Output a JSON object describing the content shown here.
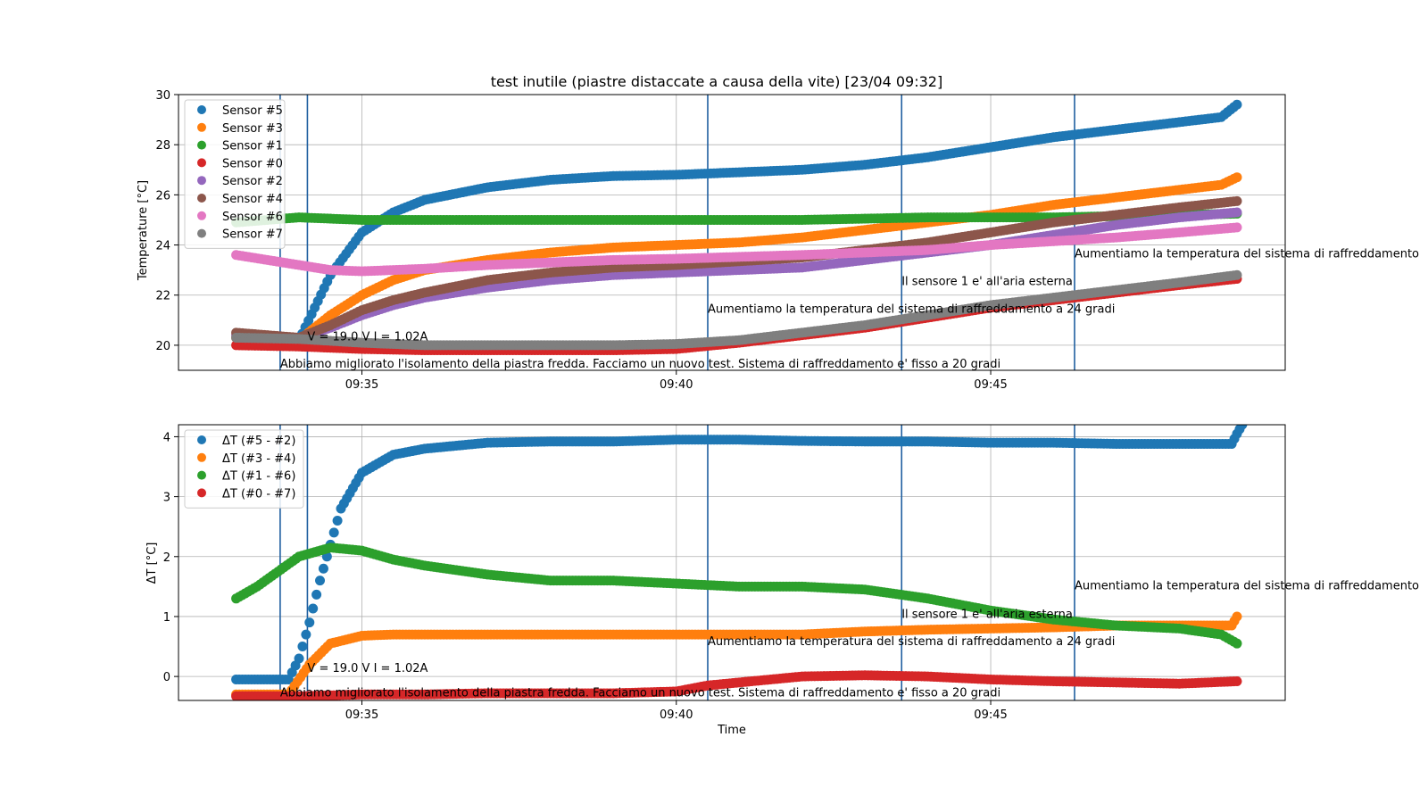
{
  "chart_data": [
    {
      "type": "scatter",
      "title": "test inutile (piastre distaccate a causa della vite) [23/04 09:32]",
      "xlabel": "",
      "ylabel": "Temperature [°C]",
      "xlim": [
        "09:32:05",
        "09:49:41"
      ],
      "ylim": [
        19,
        30
      ],
      "x_ticks": [
        "09:35",
        "09:40",
        "09:45"
      ],
      "y_ticks": [
        20,
        22,
        24,
        26,
        28,
        30
      ],
      "grid": true,
      "legend_position": "upper-left",
      "series": [
        {
          "name": "Sensor #5",
          "color": "#1f77b4",
          "x": [
            "09:33:00",
            "09:34:00",
            "09:34:30",
            "09:35:00",
            "09:35:30",
            "09:36:00",
            "09:37:00",
            "09:38:00",
            "09:39:00",
            "09:40:00",
            "09:41:00",
            "09:42:00",
            "09:43:00",
            "09:44:00",
            "09:45:00",
            "09:46:00",
            "09:47:00",
            "09:48:00",
            "09:48:40",
            "09:48:55"
          ],
          "values": [
            20.3,
            20.2,
            22.8,
            24.5,
            25.3,
            25.8,
            26.3,
            26.6,
            26.75,
            26.8,
            26.9,
            27.0,
            27.2,
            27.5,
            27.9,
            28.3,
            28.6,
            28.9,
            29.1,
            29.6
          ]
        },
        {
          "name": "Sensor #3",
          "color": "#ff7f0e",
          "x": [
            "09:33:00",
            "09:34:00",
            "09:34:30",
            "09:35:00",
            "09:35:30",
            "09:36:00",
            "09:37:00",
            "09:38:00",
            "09:39:00",
            "09:40:00",
            "09:41:00",
            "09:42:00",
            "09:43:00",
            "09:44:00",
            "09:45:00",
            "09:46:00",
            "09:47:00",
            "09:48:00",
            "09:48:40",
            "09:48:55"
          ],
          "values": [
            20.3,
            20.2,
            21.2,
            22.0,
            22.6,
            23.0,
            23.4,
            23.7,
            23.9,
            24.0,
            24.1,
            24.3,
            24.6,
            24.9,
            25.2,
            25.6,
            25.9,
            26.2,
            26.4,
            26.7
          ]
        },
        {
          "name": "Sensor #1",
          "color": "#2ca02c",
          "x": [
            "09:33:00",
            "09:34:00",
            "09:35:00",
            "09:36:00",
            "09:38:00",
            "09:40:00",
            "09:42:00",
            "09:44:00",
            "09:46:00",
            "09:48:00",
            "09:48:55"
          ],
          "values": [
            24.9,
            25.1,
            25.0,
            25.0,
            25.0,
            25.0,
            25.0,
            25.1,
            25.1,
            25.2,
            25.25
          ]
        },
        {
          "name": "Sensor #0",
          "color": "#d62728",
          "x": [
            "09:33:00",
            "09:34:00",
            "09:35:00",
            "09:36:00",
            "09:37:00",
            "09:38:00",
            "09:39:00",
            "09:40:00",
            "09:41:00",
            "09:42:00",
            "09:43:00",
            "09:44:00",
            "09:45:00",
            "09:46:00",
            "09:47:00",
            "09:48:00",
            "09:48:55"
          ],
          "values": [
            20.0,
            19.95,
            19.85,
            19.8,
            19.8,
            19.8,
            19.8,
            19.85,
            20.1,
            20.4,
            20.7,
            21.1,
            21.5,
            21.8,
            22.1,
            22.4,
            22.65
          ]
        },
        {
          "name": "Sensor #2",
          "color": "#9467bd",
          "x": [
            "09:33:00",
            "09:34:00",
            "09:34:30",
            "09:35:00",
            "09:35:30",
            "09:36:00",
            "09:37:00",
            "09:38:00",
            "09:39:00",
            "09:40:00",
            "09:41:00",
            "09:42:00",
            "09:43:00",
            "09:44:00",
            "09:45:00",
            "09:46:00",
            "09:47:00",
            "09:48:00",
            "09:48:55"
          ],
          "values": [
            20.4,
            20.3,
            20.7,
            21.2,
            21.6,
            21.9,
            22.3,
            22.6,
            22.8,
            22.9,
            23.0,
            23.1,
            23.4,
            23.7,
            24.0,
            24.4,
            24.8,
            25.1,
            25.3
          ]
        },
        {
          "name": "Sensor #4",
          "color": "#8c564b",
          "x": [
            "09:33:00",
            "09:34:00",
            "09:34:30",
            "09:35:00",
            "09:35:30",
            "09:36:00",
            "09:37:00",
            "09:38:00",
            "09:39:00",
            "09:40:00",
            "09:41:00",
            "09:42:00",
            "09:43:00",
            "09:44:00",
            "09:45:00",
            "09:46:00",
            "09:47:00",
            "09:48:00",
            "09:48:55"
          ],
          "values": [
            20.5,
            20.3,
            20.8,
            21.4,
            21.8,
            22.1,
            22.6,
            22.9,
            23.1,
            23.2,
            23.35,
            23.5,
            23.8,
            24.1,
            24.5,
            24.9,
            25.2,
            25.5,
            25.75
          ]
        },
        {
          "name": "Sensor #6",
          "color": "#e377c2",
          "x": [
            "09:33:00",
            "09:33:30",
            "09:34:00",
            "09:34:30",
            "09:35:00",
            "09:36:00",
            "09:37:00",
            "09:38:00",
            "09:39:00",
            "09:40:00",
            "09:42:00",
            "09:44:00",
            "09:45:00",
            "09:46:00",
            "09:47:00",
            "09:48:00",
            "09:48:55"
          ],
          "values": [
            23.6,
            23.4,
            23.2,
            23.0,
            22.95,
            23.05,
            23.2,
            23.3,
            23.4,
            23.45,
            23.6,
            23.8,
            24.0,
            24.15,
            24.3,
            24.5,
            24.7
          ]
        },
        {
          "name": "Sensor #7",
          "color": "#7f7f7f",
          "x": [
            "09:33:00",
            "09:34:00",
            "09:35:00",
            "09:36:00",
            "09:37:00",
            "09:38:00",
            "09:39:00",
            "09:40:00",
            "09:41:00",
            "09:42:00",
            "09:43:00",
            "09:44:00",
            "09:45:00",
            "09:46:00",
            "09:47:00",
            "09:48:00",
            "09:48:55"
          ],
          "values": [
            20.3,
            20.25,
            20.1,
            20.0,
            20.0,
            20.0,
            20.0,
            20.05,
            20.2,
            20.5,
            20.8,
            21.2,
            21.6,
            21.9,
            22.2,
            22.5,
            22.8
          ]
        }
      ],
      "vlines": [
        "09:33:42",
        "09:34:08",
        "09:40:30",
        "09:43:35",
        "09:46:20"
      ],
      "annotations": [
        {
          "text": "Abbiamo migliorato l'isolamento della piastra fredda. Facciamo un nuovo test. Sistema di raffreddamento e' fisso a 20 gradi",
          "x": "09:33:42",
          "y": 19.1
        },
        {
          "text": "V = 19.0 V I = 1.02A",
          "x": "09:34:08",
          "y": 20.2
        },
        {
          "text": "Aumentiamo la temperatura del sistema di raffreddamento a 24 gradi",
          "x": "09:40:30",
          "y": 21.3
        },
        {
          "text": "Il sensore 1 e' all'aria esterna",
          "x": "09:43:35",
          "y": 22.4
        },
        {
          "text": "Aumentiamo la temperatura del sistema di raffreddamento",
          "x": "09:46:20",
          "y": 23.5
        }
      ]
    },
    {
      "type": "scatter",
      "title": "",
      "xlabel": "Time",
      "ylabel": "ΔT [°C]",
      "xlim": [
        "09:32:05",
        "09:49:41"
      ],
      "ylim": [
        -0.4,
        4.2
      ],
      "x_ticks": [
        "09:35",
        "09:40",
        "09:45"
      ],
      "y_ticks": [
        0,
        1,
        2,
        3,
        4
      ],
      "grid": true,
      "legend_position": "upper-left",
      "series": [
        {
          "name": "ΔT (#5 - #2)",
          "color": "#1f77b4",
          "x": [
            "09:33:00",
            "09:33:50",
            "09:34:00",
            "09:34:10",
            "09:34:20",
            "09:34:30",
            "09:34:40",
            "09:35:00",
            "09:35:30",
            "09:36:00",
            "09:36:30",
            "09:37:00",
            "09:38:00",
            "09:39:00",
            "09:40:00",
            "09:41:00",
            "09:42:00",
            "09:43:00",
            "09:44:00",
            "09:45:00",
            "09:46:00",
            "09:47:00",
            "09:48:00",
            "09:48:50",
            "09:48:55",
            "09:49:00"
          ],
          "values": [
            -0.05,
            -0.05,
            0.3,
            0.9,
            1.6,
            2.2,
            2.8,
            3.4,
            3.7,
            3.8,
            3.85,
            3.9,
            3.92,
            3.92,
            3.95,
            3.95,
            3.93,
            3.92,
            3.92,
            3.9,
            3.9,
            3.88,
            3.88,
            3.88,
            4.05,
            4.2
          ]
        },
        {
          "name": "ΔT (#3 - #4)",
          "color": "#ff7f0e",
          "x": [
            "09:33:00",
            "09:33:50",
            "09:34:10",
            "09:34:30",
            "09:35:00",
            "09:35:30",
            "09:36:00",
            "09:38:00",
            "09:40:00",
            "09:42:00",
            "09:43:00",
            "09:44:00",
            "09:45:00",
            "09:46:00",
            "09:47:00",
            "09:48:00",
            "09:48:50",
            "09:48:55"
          ],
          "values": [
            -0.3,
            -0.3,
            0.2,
            0.55,
            0.68,
            0.7,
            0.7,
            0.7,
            0.7,
            0.7,
            0.75,
            0.78,
            0.8,
            0.82,
            0.85,
            0.85,
            0.85,
            1.0
          ]
        },
        {
          "name": "ΔT (#1 - #6)",
          "color": "#2ca02c",
          "x": [
            "09:33:00",
            "09:33:20",
            "09:33:40",
            "09:34:00",
            "09:34:30",
            "09:35:00",
            "09:35:30",
            "09:36:00",
            "09:37:00",
            "09:38:00",
            "09:39:00",
            "09:40:00",
            "09:41:00",
            "09:42:00",
            "09:43:00",
            "09:44:00",
            "09:45:00",
            "09:46:00",
            "09:47:00",
            "09:48:00",
            "09:48:40",
            "09:48:55"
          ],
          "values": [
            1.3,
            1.5,
            1.75,
            2.0,
            2.15,
            2.1,
            1.95,
            1.85,
            1.7,
            1.6,
            1.6,
            1.55,
            1.5,
            1.5,
            1.45,
            1.3,
            1.1,
            0.95,
            0.85,
            0.8,
            0.7,
            0.55
          ]
        },
        {
          "name": "ΔT (#0 - #7)",
          "color": "#d62728",
          "x": [
            "09:33:00",
            "09:34:00",
            "09:35:00",
            "09:36:00",
            "09:37:00",
            "09:38:00",
            "09:39:00",
            "09:40:00",
            "09:40:30",
            "09:41:00",
            "09:41:30",
            "09:42:00",
            "09:43:00",
            "09:44:00",
            "09:45:00",
            "09:46:00",
            "09:47:00",
            "09:48:00",
            "09:48:55"
          ],
          "values": [
            -0.33,
            -0.33,
            -0.3,
            -0.3,
            -0.28,
            -0.28,
            -0.28,
            -0.25,
            -0.15,
            -0.1,
            -0.05,
            0.0,
            0.02,
            0.0,
            -0.05,
            -0.08,
            -0.1,
            -0.12,
            -0.08
          ]
        }
      ],
      "vlines": [
        "09:33:42",
        "09:34:08",
        "09:40:30",
        "09:43:35",
        "09:46:20"
      ],
      "annotations": [
        {
          "text": "Abbiamo migliorato l'isolamento della piastra fredda. Facciamo un nuovo test. Sistema di raffreddamento e' fisso a 20 gradi",
          "x": "09:33:42",
          "y": -0.33
        },
        {
          "text": "V = 19.0 V I = 1.02A",
          "x": "09:34:08",
          "y": 0.08
        },
        {
          "text": "Aumentiamo la temperatura del sistema di raffreddamento a 24 gradi",
          "x": "09:40:30",
          "y": 0.52
        },
        {
          "text": "Il sensore 1 e' all'aria esterna",
          "x": "09:43:35",
          "y": 0.98
        },
        {
          "text": "Aumentiamo la temperatura del sistema di raffreddamento",
          "x": "09:46:20",
          "y": 1.45
        }
      ]
    }
  ]
}
